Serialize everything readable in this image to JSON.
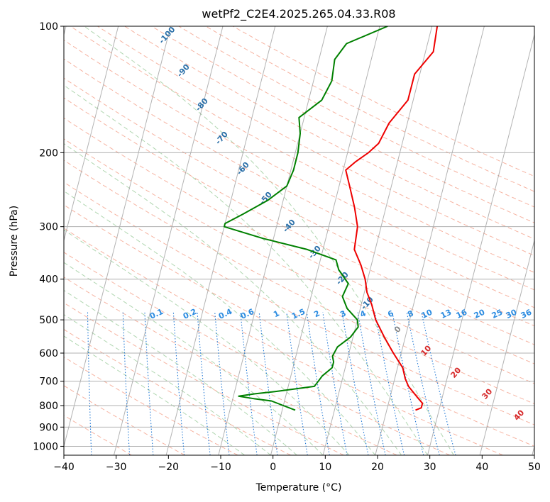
{
  "chart_data": {
    "type": "line",
    "title": "wetPf2_C2E4.2025.265.04.33.R08",
    "xlabel": "Temperature (°C)",
    "ylabel": "Pressure (hPa)",
    "xlim": [
      -40,
      50
    ],
    "ylim": [
      1050,
      100
    ],
    "y_scale": "log",
    "grid": true,
    "x_ticks": [
      "−40",
      "−30",
      "−20",
      "−10",
      "0",
      "10",
      "20",
      "30",
      "40",
      "50"
    ],
    "y_ticks": [
      "100",
      "200",
      "300",
      "400",
      "500",
      "600",
      "700",
      "800",
      "900",
      "1000"
    ],
    "series": [
      {
        "color": "#ee0000",
        "p": [
          820,
          810,
          790,
          760,
          720,
          690,
          650,
          600,
          550,
          500,
          460,
          430,
          400,
          370,
          340,
          300,
          270,
          240,
          220,
          210,
          200,
          190,
          170,
          150,
          130,
          115,
          100
        ],
        "t": [
          25.5,
          26.5,
          26.5,
          25,
          23,
          22,
          21,
          18.5,
          16,
          13.5,
          12,
          10.5,
          9.5,
          8,
          6,
          5.5,
          4,
          2,
          0.5,
          2,
          4,
          5.5,
          6.5,
          9,
          9,
          11.5,
          11
        ]
      },
      {
        "color": "#008000",
        "p": [
          820,
          800,
          780,
          770,
          760,
          750,
          740,
          720,
          700,
          680,
          650,
          630,
          610,
          580,
          550,
          520,
          500,
          470,
          440,
          410,
          380,
          360,
          340,
          320,
          300,
          295,
          280,
          260,
          240,
          220,
          200,
          180,
          165,
          150,
          135,
          120,
          110,
          100
        ],
        "t": [
          2.5,
          0,
          -2.5,
          -6,
          -9,
          -6,
          -2,
          5,
          5.5,
          6,
          7.5,
          7.5,
          7,
          7.5,
          9.5,
          10.5,
          10,
          7.5,
          6,
          6.5,
          4,
          3,
          -3,
          -12,
          -20,
          -20,
          -17,
          -13,
          -10,
          -9.5,
          -9.5,
          -10,
          -11,
          -7.5,
          -6.5,
          -7,
          -5.5,
          1.5
        ]
      }
    ],
    "dry_adiabats": [
      -30,
      -20,
      -10,
      0,
      10,
      20,
      30,
      40,
      50,
      60,
      70,
      80,
      90,
      100,
      110,
      120,
      130,
      140,
      150,
      160,
      170,
      180,
      190,
      200
    ],
    "moist_adiabats": [
      -5,
      0,
      5,
      10,
      15,
      20,
      25,
      30,
      35
    ],
    "mixing_ratio_lines": [
      "0.1",
      "0.2",
      "0.4",
      "0.6",
      "1",
      "1.5",
      "2",
      "3",
      "4",
      "6",
      "8",
      "10",
      "13",
      "16",
      "20",
      "25",
      "30",
      "36"
    ],
    "isotherm_labels": [
      "-100",
      "-90",
      "-80",
      "-70",
      "-60",
      "-50",
      "-40",
      "-30",
      "-20",
      "-10"
    ],
    "red_labels": [
      "10",
      "20",
      "30",
      "40"
    ],
    "gray_label": "0",
    "colors": {
      "isobar": "#b0b0b0",
      "isotherm": "#9a9a9a",
      "dry_adiabat": "#f4a690",
      "moist_adiabat": "#9ccc9c",
      "mixing_ratio": "#1f77d4",
      "isotherm_label": "#2a6fa8",
      "mixing_label": "#2b8be0",
      "red_label": "#d62728",
      "brown_line": "#c8a07a"
    }
  }
}
